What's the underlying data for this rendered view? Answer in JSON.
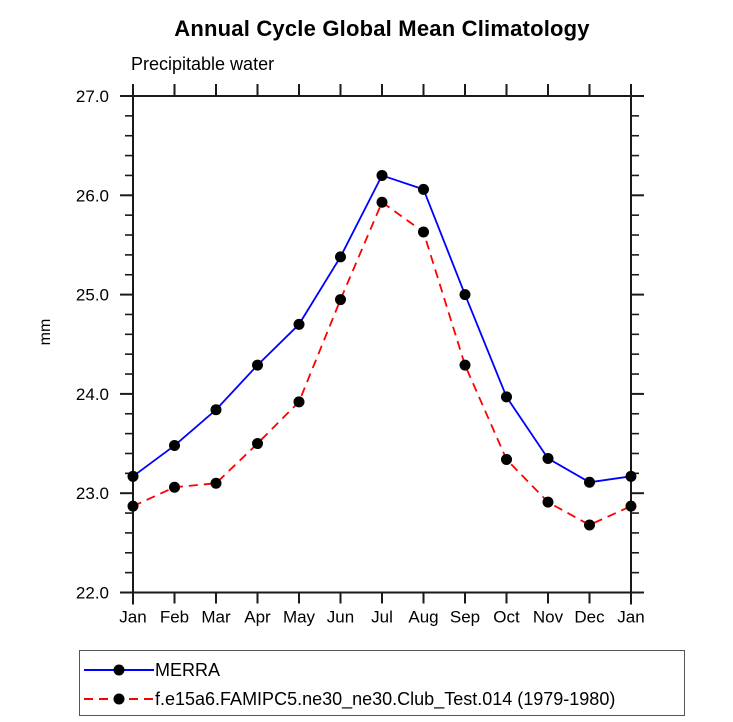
{
  "chart_data": {
    "type": "line",
    "title": "Annual Cycle Global Mean Climatology",
    "subtitle": "Precipitable water",
    "ylabel": "mm",
    "xlabel": "",
    "categories": [
      "Jan",
      "Feb",
      "Mar",
      "Apr",
      "May",
      "Jun",
      "Jul",
      "Aug",
      "Sep",
      "Oct",
      "Nov",
      "Dec",
      "Jan"
    ],
    "ylim": [
      22.0,
      27.0
    ],
    "ytick_labels": [
      "22.0",
      "23.0",
      "24.0",
      "25.0",
      "26.0",
      "27.0"
    ],
    "ytick_major": [
      22.0,
      23.0,
      24.0,
      25.0,
      26.0,
      27.0
    ],
    "ytick_minor_step": 0.2,
    "grid": false,
    "legend_position": "bottom",
    "marker": "filled-circle",
    "marker_color": "#000000",
    "axis_color": "#1a1a1a",
    "series": [
      {
        "name": "MERRA",
        "color": "#0000ff",
        "line_style": "solid",
        "values": [
          23.17,
          23.48,
          23.84,
          24.29,
          24.7,
          25.38,
          26.2,
          26.06,
          25.0,
          23.97,
          23.35,
          23.11,
          23.17
        ]
      },
      {
        "name": "f.e15a6.FAMIPC5.ne30_ne30.Club_Test.014 (1979-1980)",
        "color": "#ff0000",
        "line_style": "dashed",
        "values": [
          22.87,
          23.06,
          23.1,
          23.5,
          23.92,
          24.95,
          25.93,
          25.63,
          24.29,
          23.34,
          22.91,
          22.68,
          22.87
        ]
      }
    ]
  }
}
